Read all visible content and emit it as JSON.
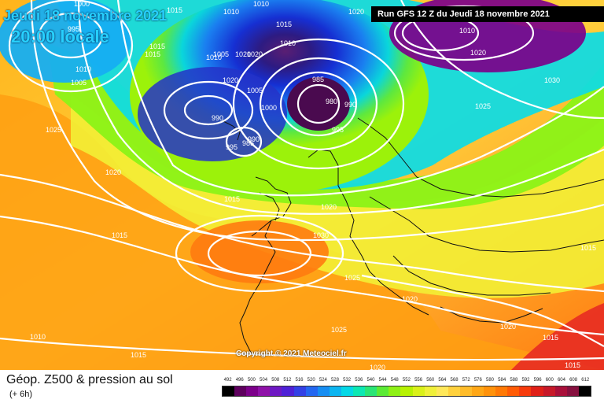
{
  "header": {
    "date_text": "Jeudi 18 novembre 2021",
    "time_text": "20:00 locale",
    "run_text": "Run GFS 12 Z du Jeudi 18 novembre 2021"
  },
  "footer": {
    "title": "Géop. Z500 & pression au sol",
    "subtitle": "(+ 6h)",
    "copyright": "Copyright © 2021 Meteociel.fr"
  },
  "isobar_labels": [
    "1015",
    "1010",
    "1010",
    "1010",
    "1015",
    "1020",
    "1010",
    "995",
    "1005",
    "1000",
    "1005",
    "1015",
    "1010",
    "1010",
    "1020",
    "1020",
    "1005",
    "985",
    "990",
    "980",
    "1000",
    "990",
    "995",
    "995",
    "985",
    "990",
    "1030",
    "1025",
    "1025",
    "1020",
    "1015",
    "1015",
    "1020",
    "1030",
    "1025",
    "1020",
    "1025",
    "1020",
    "1010",
    "1015",
    "1015",
    "1015",
    "1020",
    "1020",
    "1015",
    "1015",
    "1020"
  ],
  "colors": {
    "low": "#4a0a4f",
    "mid_low": "#1533c8",
    "mid": "#10d8e0",
    "mid_high": "#9cf20a",
    "high": "#ffb41c",
    "very_high": "#e82b22"
  },
  "scale": {
    "values": [
      "492",
      "496",
      "500",
      "504",
      "508",
      "512",
      "516",
      "520",
      "524",
      "528",
      "532",
      "536",
      "540",
      "544",
      "548",
      "552",
      "556",
      "560",
      "564",
      "568",
      "572",
      "576",
      "580",
      "584",
      "588",
      "592",
      "596",
      "600",
      "604",
      "608",
      "612"
    ],
    "colors": [
      "#000000",
      "#5e005e",
      "#7c008a",
      "#8f12a8",
      "#6e18c3",
      "#4e21d6",
      "#3341e5",
      "#2467f0",
      "#178ef2",
      "#0db5f0",
      "#05d8e6",
      "#0de8b3",
      "#2ae576",
      "#5bea35",
      "#8ef016",
      "#b7f203",
      "#daf11a",
      "#f0f03a",
      "#ffe85a",
      "#ffd13d",
      "#ffbc2a",
      "#ffa716",
      "#ff920b",
      "#ff7905",
      "#ff5b05",
      "#f63b0d",
      "#e02018",
      "#c71929",
      "#a9103a",
      "#86103f",
      "#000000"
    ]
  }
}
